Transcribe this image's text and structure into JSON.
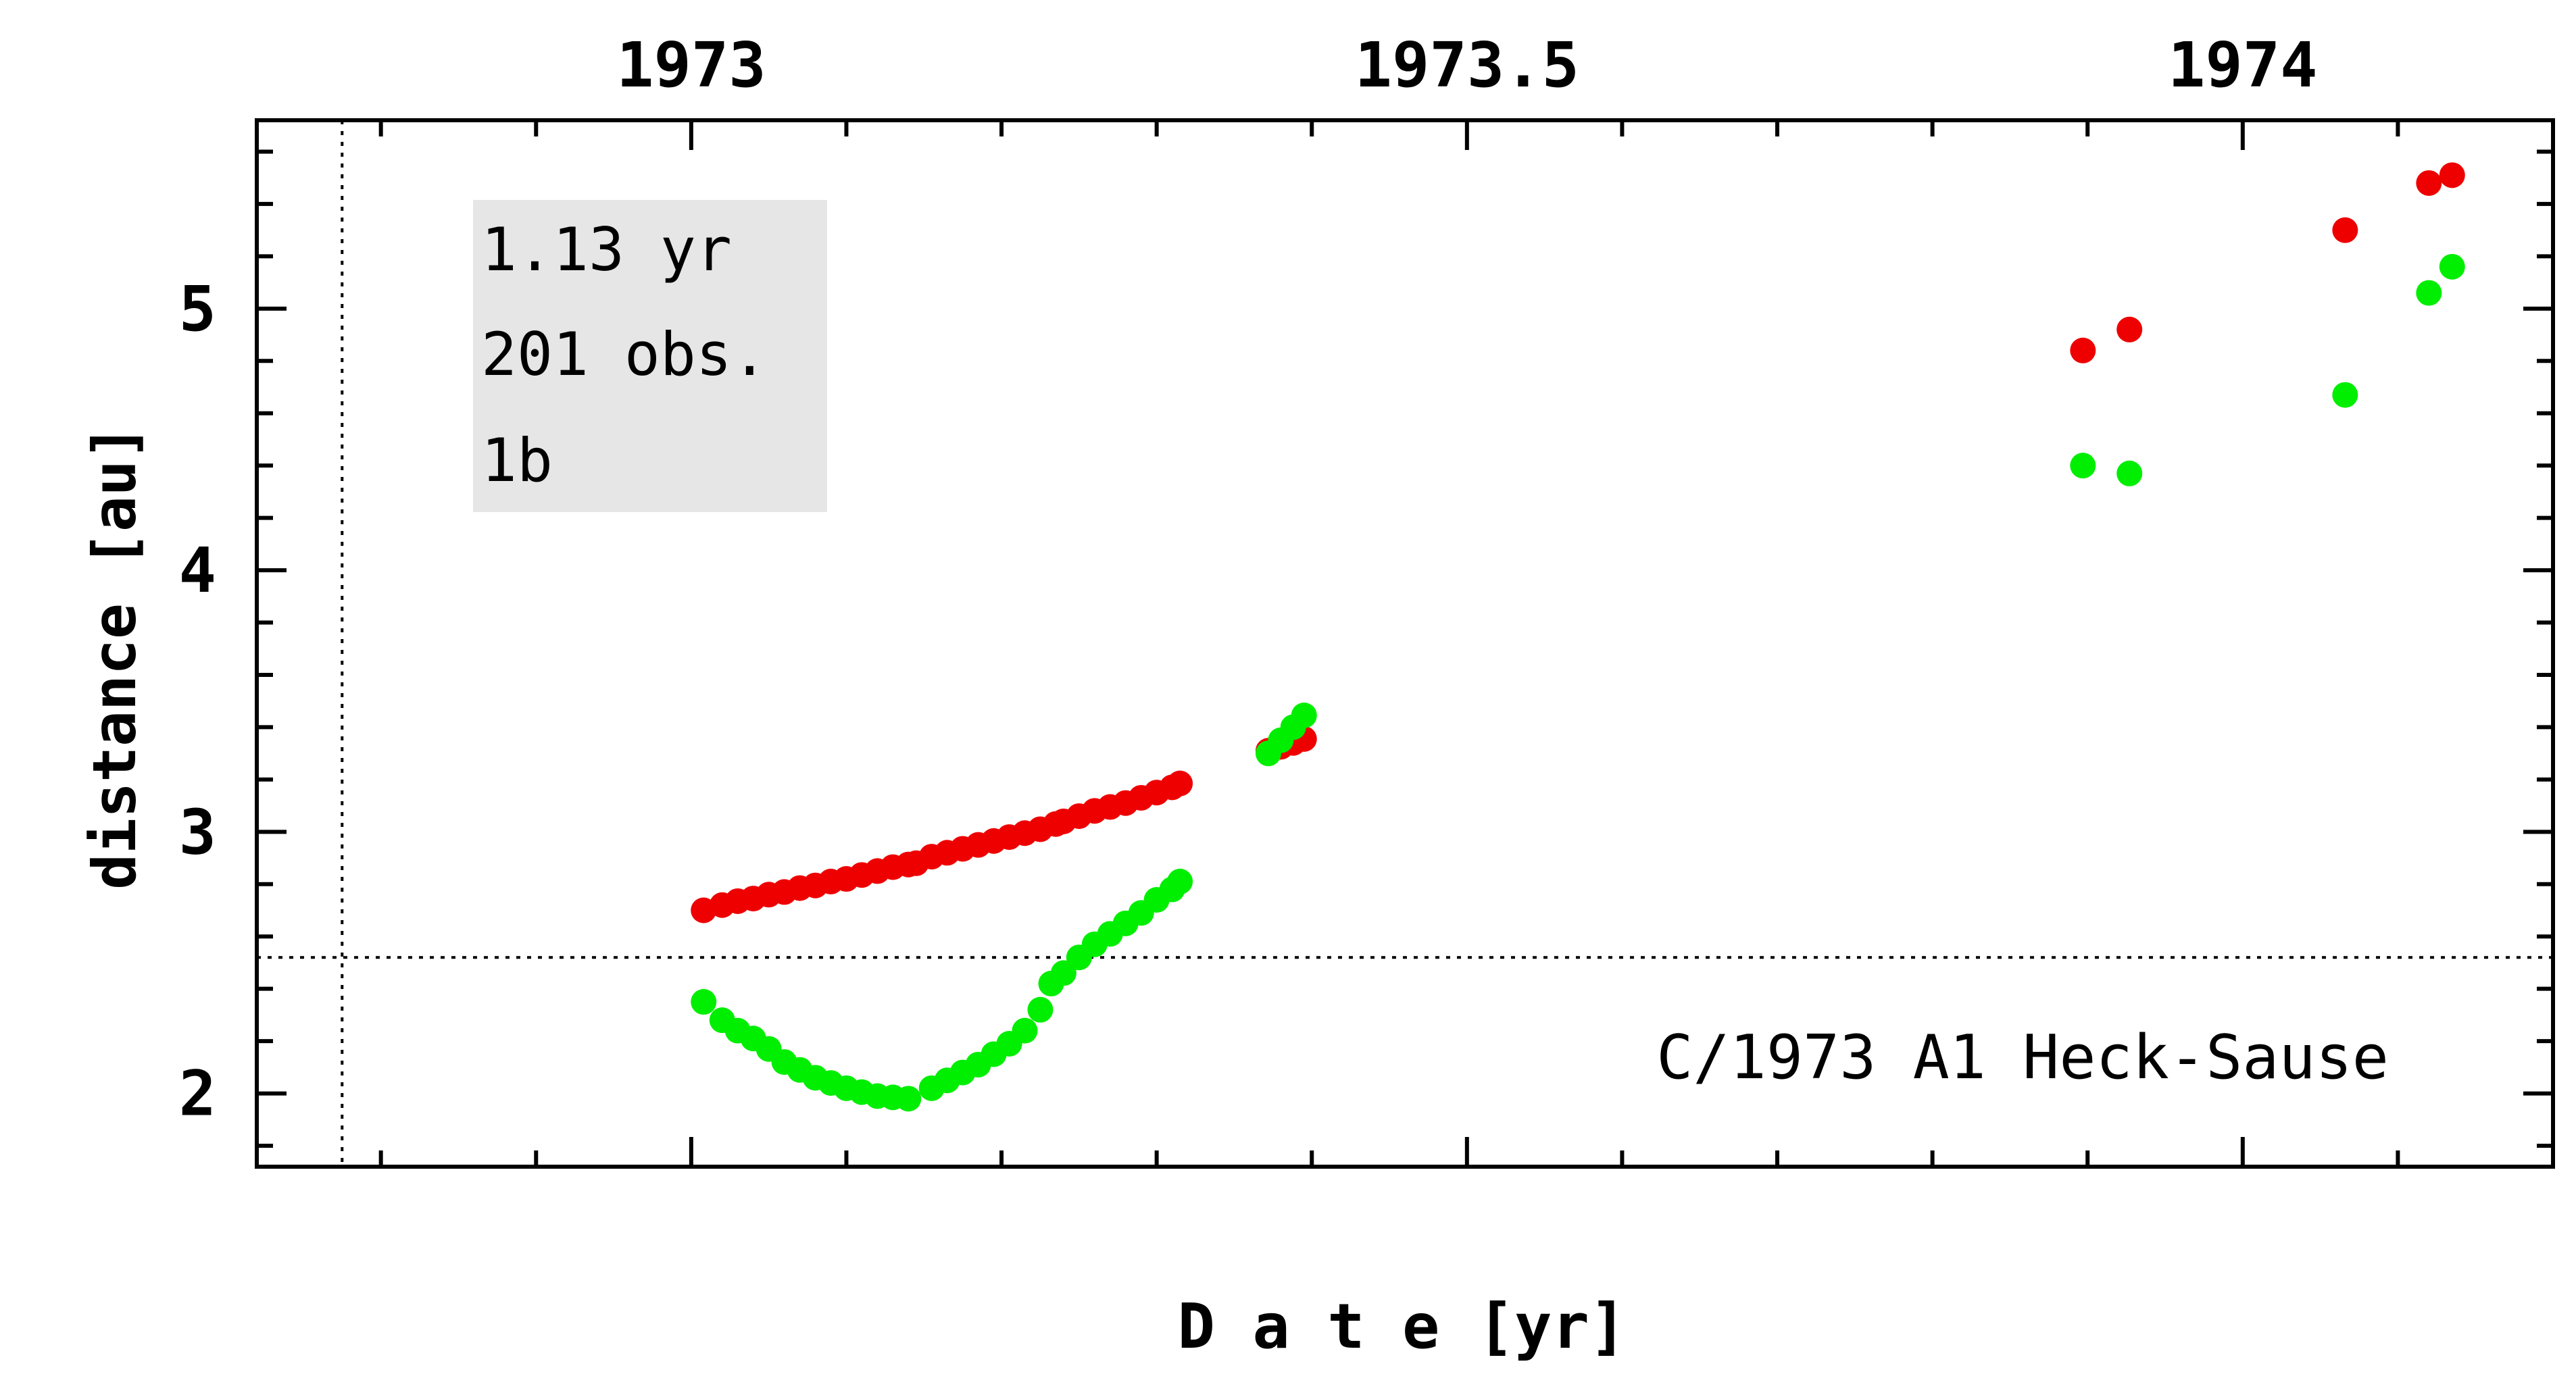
{
  "chart_data": {
    "type": "scatter",
    "title": "",
    "xlabel": "D a t e [yr]",
    "ylabel": "distance [au]",
    "xlim": [
      1972.72,
      1974.2
    ],
    "ylim": [
      1.72,
      5.72
    ],
    "x_ticks": [
      1973,
      1973.5,
      1974
    ],
    "x_tick_labels": [
      "1973",
      "1973.5",
      "1974"
    ],
    "y_ticks": [
      2,
      3,
      4,
      5
    ],
    "y_tick_labels": [
      "2",
      "3",
      "4",
      "5"
    ],
    "grid": false,
    "reference_lines": {
      "horizontal_y": 2.52,
      "vertical_x": 1972.775
    },
    "info_box": {
      "lines": [
        "1.13 yr",
        "201 obs.",
        "1b"
      ],
      "background": "#e6e6e6"
    },
    "annotation": "C/1973 A1 Heck-Sause",
    "colors": {
      "series_red": "#ee0000",
      "series_green": "#00ee00",
      "axes": "#000000"
    },
    "series": [
      {
        "color": "#ee0000",
        "points": [
          [
            1973.008,
            2.7
          ],
          [
            1973.02,
            2.72
          ],
          [
            1973.03,
            2.735
          ],
          [
            1973.04,
            2.745
          ],
          [
            1973.05,
            2.76
          ],
          [
            1973.06,
            2.77
          ],
          [
            1973.07,
            2.785
          ],
          [
            1973.08,
            2.795
          ],
          [
            1973.09,
            2.81
          ],
          [
            1973.1,
            2.82
          ],
          [
            1973.11,
            2.835
          ],
          [
            1973.12,
            2.85
          ],
          [
            1973.13,
            2.865
          ],
          [
            1973.14,
            2.875
          ],
          [
            1973.145,
            2.88
          ],
          [
            1973.155,
            2.905
          ],
          [
            1973.165,
            2.92
          ],
          [
            1973.175,
            2.935
          ],
          [
            1973.185,
            2.95
          ],
          [
            1973.195,
            2.965
          ],
          [
            1973.205,
            2.98
          ],
          [
            1973.215,
            2.995
          ],
          [
            1973.225,
            3.01
          ],
          [
            1973.235,
            3.03
          ],
          [
            1973.24,
            3.04
          ],
          [
            1973.25,
            3.06
          ],
          [
            1973.26,
            3.08
          ],
          [
            1973.27,
            3.095
          ],
          [
            1973.28,
            3.11
          ],
          [
            1973.29,
            3.13
          ],
          [
            1973.3,
            3.15
          ],
          [
            1973.31,
            3.17
          ],
          [
            1973.315,
            3.185
          ],
          [
            1973.372,
            3.31
          ],
          [
            1973.38,
            3.325
          ],
          [
            1973.388,
            3.34
          ],
          [
            1973.395,
            3.355
          ],
          [
            1973.897,
            4.84
          ],
          [
            1973.927,
            4.92
          ],
          [
            1974.066,
            5.3
          ],
          [
            1974.12,
            5.48
          ],
          [
            1974.135,
            5.51
          ]
        ]
      },
      {
        "color": "#00ee00",
        "points": [
          [
            1973.008,
            2.35
          ],
          [
            1973.02,
            2.28
          ],
          [
            1973.03,
            2.24
          ],
          [
            1973.04,
            2.21
          ],
          [
            1973.05,
            2.17
          ],
          [
            1973.06,
            2.12
          ],
          [
            1973.07,
            2.09
          ],
          [
            1973.08,
            2.06
          ],
          [
            1973.09,
            2.04
          ],
          [
            1973.1,
            2.02
          ],
          [
            1973.11,
            2.005
          ],
          [
            1973.12,
            1.99
          ],
          [
            1973.13,
            1.985
          ],
          [
            1973.14,
            1.98
          ],
          [
            1973.155,
            2.02
          ],
          [
            1973.165,
            2.05
          ],
          [
            1973.175,
            2.08
          ],
          [
            1973.185,
            2.11
          ],
          [
            1973.195,
            2.15
          ],
          [
            1973.205,
            2.19
          ],
          [
            1973.215,
            2.24
          ],
          [
            1973.225,
            2.32
          ],
          [
            1973.232,
            2.42
          ],
          [
            1973.24,
            2.46
          ],
          [
            1973.25,
            2.52
          ],
          [
            1973.26,
            2.57
          ],
          [
            1973.27,
            2.61
          ],
          [
            1973.28,
            2.65
          ],
          [
            1973.29,
            2.69
          ],
          [
            1973.3,
            2.74
          ],
          [
            1973.31,
            2.78
          ],
          [
            1973.315,
            2.81
          ],
          [
            1973.372,
            3.3
          ],
          [
            1973.38,
            3.35
          ],
          [
            1973.388,
            3.4
          ],
          [
            1973.395,
            3.445
          ],
          [
            1973.897,
            4.4
          ],
          [
            1973.927,
            4.37
          ],
          [
            1974.066,
            4.67
          ],
          [
            1974.12,
            5.06
          ],
          [
            1974.135,
            5.16
          ]
        ]
      }
    ]
  }
}
